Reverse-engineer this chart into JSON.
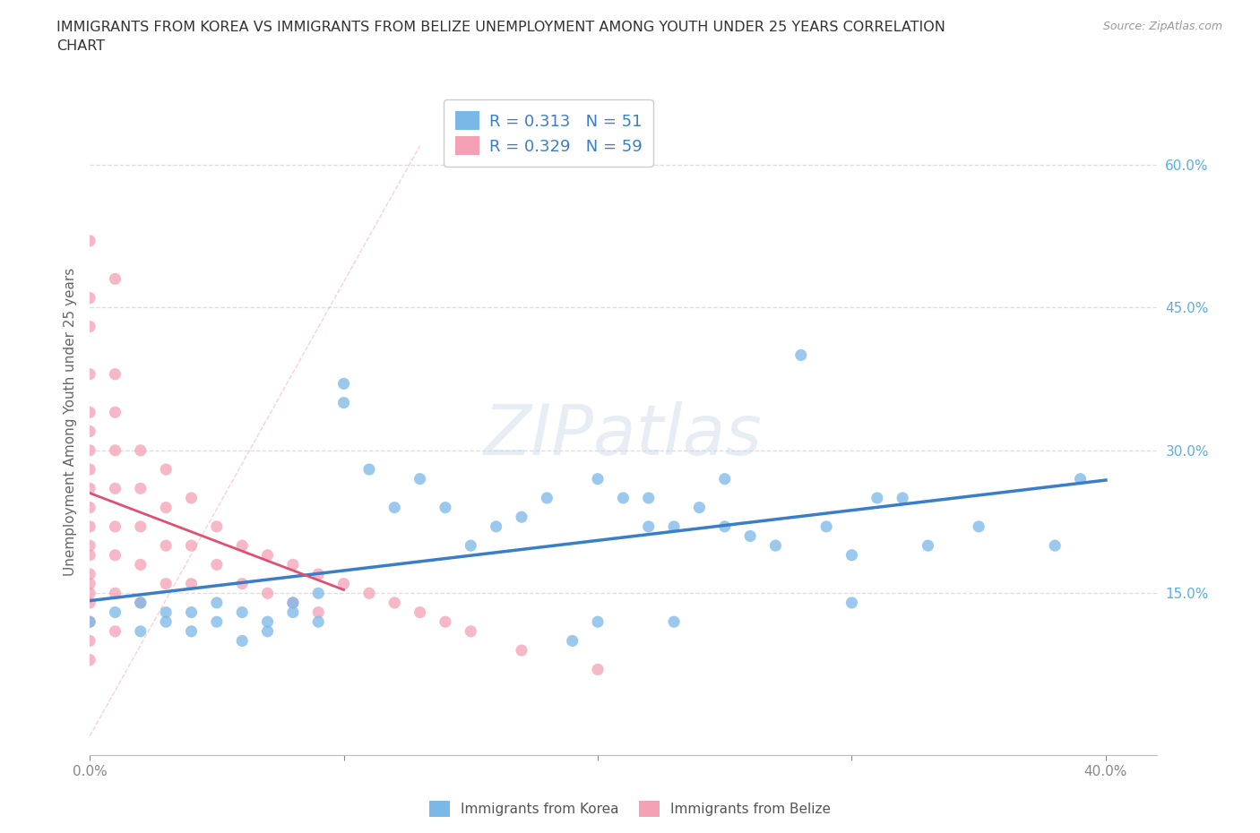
{
  "title": "IMMIGRANTS FROM KOREA VS IMMIGRANTS FROM BELIZE UNEMPLOYMENT AMONG YOUTH UNDER 25 YEARS CORRELATION\nCHART",
  "source_text": "Source: ZipAtlas.com",
  "ylabel": "Unemployment Among Youth under 25 years",
  "xlim": [
    0.0,
    0.42
  ],
  "ylim": [
    -0.02,
    0.68
  ],
  "x_ticks": [
    0.0,
    0.1,
    0.2,
    0.3,
    0.4
  ],
  "x_tick_labels": [
    "0.0%",
    "",
    "",
    "",
    "40.0%"
  ],
  "y_tick_labels_right": [
    "60.0%",
    "45.0%",
    "30.0%",
    "15.0%"
  ],
  "y_tick_positions_right": [
    0.6,
    0.45,
    0.3,
    0.15
  ],
  "korea_scatter_color": "#7AB8E8",
  "belize_scatter_color": "#F4A0B5",
  "trendline_korea_color": "#3A7DC8",
  "trendline_belize_color": "#E05070",
  "legend_korea_label": "R = 0.313   N = 51",
  "legend_belize_label": "R = 0.329   N = 59",
  "legend_label_korea": "Immigrants from Korea",
  "legend_label_belize": "Immigrants from Belize",
  "watermark": "ZIPatlas",
  "background_color": "#FFFFFF",
  "grid_color": "#DDDDDD",
  "korea_x": [
    0.0,
    0.01,
    0.02,
    0.02,
    0.03,
    0.03,
    0.04,
    0.04,
    0.05,
    0.05,
    0.06,
    0.06,
    0.07,
    0.07,
    0.08,
    0.08,
    0.09,
    0.09,
    0.1,
    0.1,
    0.11,
    0.12,
    0.13,
    0.14,
    0.15,
    0.16,
    0.17,
    0.18,
    0.19,
    0.2,
    0.2,
    0.21,
    0.22,
    0.22,
    0.23,
    0.23,
    0.24,
    0.25,
    0.25,
    0.26,
    0.27,
    0.28,
    0.29,
    0.3,
    0.3,
    0.31,
    0.32,
    0.33,
    0.35,
    0.38,
    0.39
  ],
  "korea_y": [
    0.12,
    0.13,
    0.11,
    0.14,
    0.13,
    0.12,
    0.13,
    0.11,
    0.12,
    0.14,
    0.1,
    0.13,
    0.12,
    0.11,
    0.13,
    0.14,
    0.15,
    0.12,
    0.37,
    0.35,
    0.28,
    0.24,
    0.27,
    0.24,
    0.2,
    0.22,
    0.23,
    0.25,
    0.1,
    0.12,
    0.27,
    0.25,
    0.22,
    0.25,
    0.12,
    0.22,
    0.24,
    0.22,
    0.27,
    0.21,
    0.2,
    0.4,
    0.22,
    0.19,
    0.14,
    0.25,
    0.25,
    0.2,
    0.22,
    0.2,
    0.27
  ],
  "belize_x": [
    0.0,
    0.0,
    0.0,
    0.0,
    0.0,
    0.0,
    0.0,
    0.0,
    0.0,
    0.0,
    0.0,
    0.0,
    0.0,
    0.0,
    0.0,
    0.0,
    0.0,
    0.0,
    0.0,
    0.0,
    0.01,
    0.01,
    0.01,
    0.01,
    0.01,
    0.01,
    0.01,
    0.01,
    0.01,
    0.02,
    0.02,
    0.02,
    0.02,
    0.02,
    0.03,
    0.03,
    0.03,
    0.03,
    0.04,
    0.04,
    0.04,
    0.05,
    0.05,
    0.06,
    0.06,
    0.07,
    0.07,
    0.08,
    0.08,
    0.09,
    0.09,
    0.1,
    0.11,
    0.12,
    0.13,
    0.14,
    0.15,
    0.17,
    0.2
  ],
  "belize_y": [
    0.52,
    0.46,
    0.43,
    0.38,
    0.34,
    0.32,
    0.3,
    0.28,
    0.26,
    0.24,
    0.22,
    0.2,
    0.19,
    0.17,
    0.16,
    0.15,
    0.14,
    0.12,
    0.1,
    0.08,
    0.48,
    0.38,
    0.34,
    0.3,
    0.26,
    0.22,
    0.19,
    0.15,
    0.11,
    0.3,
    0.26,
    0.22,
    0.18,
    0.14,
    0.28,
    0.24,
    0.2,
    0.16,
    0.25,
    0.2,
    0.16,
    0.22,
    0.18,
    0.2,
    0.16,
    0.19,
    0.15,
    0.18,
    0.14,
    0.17,
    0.13,
    0.16,
    0.15,
    0.14,
    0.13,
    0.12,
    0.11,
    0.09,
    0.07
  ]
}
